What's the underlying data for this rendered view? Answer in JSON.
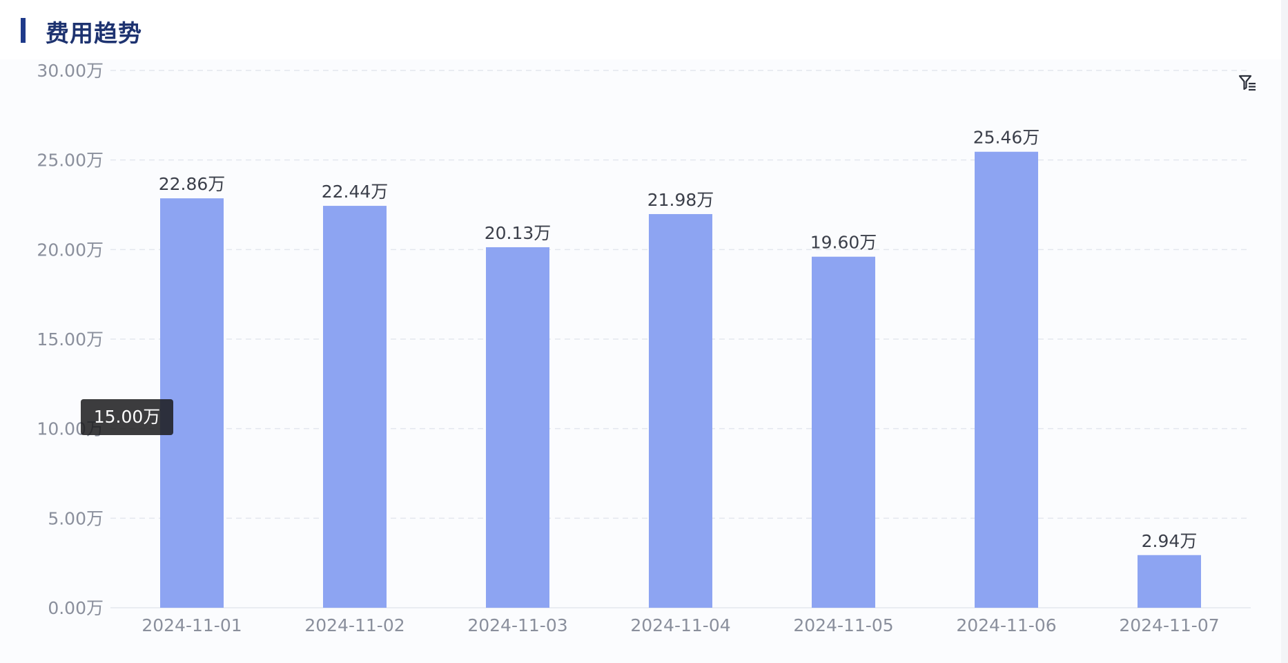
{
  "header": {
    "title": "费用趋势"
  },
  "filter_icon": "filter-settings-icon",
  "tooltip": {
    "text": "15.00万"
  },
  "colors": {
    "bar": "#8da4f2",
    "title": "#1e3370",
    "accent": "#1f3a8a",
    "axis_text": "#8a8f9c",
    "label_text": "#3b3f4a",
    "grid": "#e3e6ee"
  },
  "chart_data": {
    "type": "bar",
    "title": "费用趋势",
    "xlabel": "",
    "ylabel": "",
    "unit": "万",
    "ylim": [
      0,
      30
    ],
    "yticks": [
      0,
      5,
      10,
      15,
      20,
      25,
      30
    ],
    "ytick_labels": [
      "0.00万",
      "5.00万",
      "10.00万",
      "15.00万",
      "20.00万",
      "25.00万",
      "30.00万"
    ],
    "categories": [
      "2024-11-01",
      "2024-11-02",
      "2024-11-03",
      "2024-11-04",
      "2024-11-05",
      "2024-11-06",
      "2024-11-07"
    ],
    "values": [
      22.86,
      22.44,
      20.13,
      21.98,
      19.6,
      25.46,
      2.94
    ],
    "value_labels": [
      "22.86万",
      "22.44万",
      "20.13万",
      "21.98万",
      "19.60万",
      "25.46万",
      "2.94万"
    ],
    "grid": true,
    "legend": false
  }
}
